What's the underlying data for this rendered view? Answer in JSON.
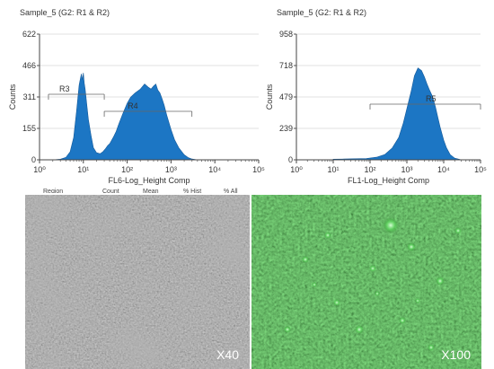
{
  "chart_data": [
    {
      "type": "area",
      "title": "Sample_5  (G2: R1 & R2)",
      "xlabel": "FL6-Log_Height Comp",
      "ylabel": "Counts",
      "xscale": "log",
      "xlim": [
        1,
        100000
      ],
      "ylim": [
        0,
        622
      ],
      "x_ticks": [
        "10⁰",
        "10¹",
        "10²",
        "10³",
        "10⁴",
        "10⁵"
      ],
      "y_ticks": [
        "0",
        "155",
        "311",
        "466",
        "622"
      ],
      "color": "#1c76c4",
      "series": [
        {
          "x": [
            2.0,
            3.0,
            4.0,
            5.0,
            6.0,
            7.0,
            8.0,
            8.5,
            9.0,
            9.5,
            10.0,
            10.5,
            11.0,
            12.0,
            13.0,
            15.0,
            17.0,
            20.0,
            24.0,
            28.0,
            32.0,
            36.0,
            40.0,
            48.0,
            56.0,
            64.0,
            80.0,
            100.0,
            120.0,
            150.0,
            200.0,
            250.0,
            300.0,
            350.0,
            400.0,
            450.0,
            500.0,
            560.0,
            630.0,
            700.0,
            800.0,
            1000.0,
            1200.0,
            1500.0,
            2000.0,
            2500.0,
            3000.0,
            4000.0
          ],
          "y": [
            0,
            3,
            12,
            40,
            110,
            240,
            370,
            400,
            425,
            395,
            430,
            380,
            350,
            270,
            200,
            120,
            60,
            35,
            30,
            40,
            55,
            70,
            80,
            110,
            140,
            175,
            230,
            280,
            310,
            330,
            350,
            375,
            360,
            350,
            365,
            375,
            345,
            330,
            300,
            270,
            220,
            150,
            100,
            60,
            25,
            10,
            4,
            0
          ]
        }
      ],
      "annotations": [
        {
          "label": "R3",
          "x_range": [
            1.6,
            30
          ]
        },
        {
          "label": "R4",
          "x_range": [
            30,
            3000
          ]
        }
      ],
      "stats_header": [
        "Region",
        "Count",
        "Mean",
        "% Hist",
        "% All"
      ]
    },
    {
      "type": "area",
      "title": "Sample_5  (G2: R1 & R2)",
      "xlabel": "FL1-Log_Height Comp",
      "ylabel": "Counts",
      "xscale": "log",
      "xlim": [
        1,
        100000
      ],
      "ylim": [
        0,
        958
      ],
      "x_ticks": [
        "10⁰",
        "10¹",
        "10²",
        "10³",
        "10⁴",
        "10⁵"
      ],
      "y_ticks": [
        "0",
        "239",
        "479",
        "718",
        "958"
      ],
      "color": "#1c76c4",
      "series": [
        {
          "x": [
            10.0,
            20.0,
            40.0,
            80.0,
            150.0,
            250.0,
            400.0,
            600.0,
            800.0,
            1000.0,
            1300.0,
            1600.0,
            2000.0,
            2500.0,
            3000.0,
            3500.0,
            4000.0,
            5000.0,
            6000.0,
            7000.0,
            8000.0,
            10000.0,
            12000.0,
            15000.0,
            20000.0,
            30000.0
          ],
          "y": [
            5,
            6,
            8,
            10,
            20,
            40,
            90,
            170,
            280,
            390,
            520,
            640,
            700,
            680,
            630,
            580,
            540,
            480,
            400,
            320,
            250,
            150,
            90,
            40,
            12,
            0
          ]
        }
      ],
      "annotations": [
        {
          "label": "R5",
          "x_range": [
            100,
            100000
          ]
        }
      ]
    }
  ],
  "images": {
    "left_label": "X40",
    "right_label": "X100"
  }
}
